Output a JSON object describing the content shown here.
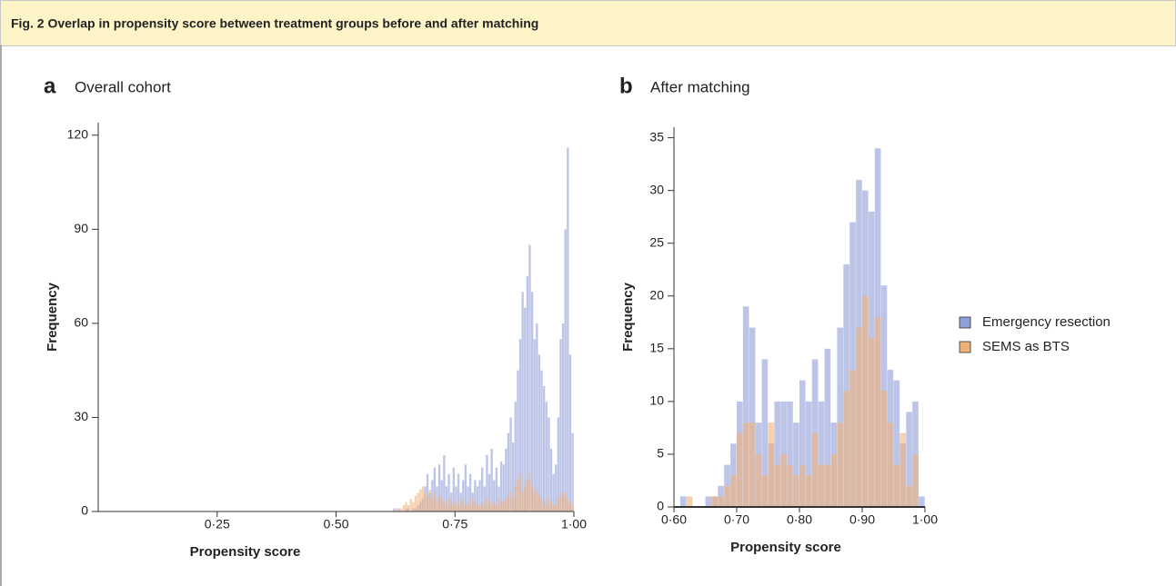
{
  "figure_title": "Fig. 2 Overlap in propensity score between treatment groups before and after matching",
  "chart_data": [
    {
      "type": "histogram",
      "panel_label": "a",
      "title": "Overall cohort",
      "xlabel": "Propensity score",
      "ylabel": "Frequency",
      "bins": [
        0.6,
        0.605,
        0.61,
        0.615,
        0.62,
        0.625,
        0.63,
        0.635,
        0.64,
        0.645,
        0.65,
        0.655,
        0.66,
        0.665,
        0.67,
        0.675,
        0.68,
        0.685,
        0.69,
        0.695,
        0.7,
        0.705,
        0.71,
        0.715,
        0.72,
        0.725,
        0.73,
        0.735,
        0.74,
        0.745,
        0.75,
        0.755,
        0.76,
        0.765,
        0.77,
        0.775,
        0.78,
        0.785,
        0.79,
        0.795,
        0.8,
        0.805,
        0.81,
        0.815,
        0.82,
        0.825,
        0.83,
        0.835,
        0.84,
        0.845,
        0.85,
        0.855,
        0.86,
        0.865,
        0.87,
        0.875,
        0.88,
        0.885,
        0.89,
        0.895,
        0.9,
        0.905,
        0.91,
        0.915,
        0.92,
        0.925,
        0.93,
        0.935,
        0.94,
        0.945,
        0.95,
        0.955,
        0.96,
        0.965,
        0.97,
        0.975,
        0.98,
        0.985,
        0.99,
        0.995,
        1.0
      ],
      "series": [
        {
          "color": "#8f9fd8",
          "values": [
            0,
            0,
            0,
            0,
            1,
            0,
            1,
            0,
            0,
            1,
            1,
            0,
            1,
            1,
            2,
            3,
            4,
            8,
            12,
            6,
            10,
            14,
            8,
            15,
            10,
            18,
            8,
            12,
            6,
            14,
            8,
            12,
            6,
            10,
            15,
            8,
            12,
            6,
            10,
            8,
            10,
            14,
            8,
            18,
            12,
            20,
            10,
            14,
            8,
            16,
            15,
            20,
            25,
            30,
            22,
            35,
            45,
            55,
            70,
            65,
            75,
            85,
            70,
            55,
            60,
            50,
            45,
            40,
            35,
            30,
            20,
            12,
            15,
            30,
            55,
            60,
            90,
            116,
            50,
            25
          ]
        },
        {
          "color": "#f0b07a",
          "values": [
            0,
            0,
            0,
            0,
            0,
            1,
            0,
            1,
            2,
            3,
            2,
            4,
            3,
            5,
            6,
            7,
            8,
            6,
            5,
            7,
            4,
            6,
            3,
            5,
            4,
            3,
            2,
            4,
            3,
            2,
            3,
            2,
            4,
            3,
            2,
            3,
            2,
            4,
            3,
            2,
            2,
            3,
            2,
            4,
            3,
            2,
            3,
            2,
            4,
            3,
            3,
            4,
            5,
            6,
            4,
            8,
            10,
            12,
            6,
            8,
            10,
            12,
            8,
            6,
            7,
            5,
            4,
            3,
            2,
            4,
            3,
            2,
            2,
            4,
            6,
            5,
            6,
            4,
            3,
            2
          ]
        }
      ],
      "xlim": [
        0,
        1
      ],
      "ylim": [
        0,
        124
      ],
      "xticks": [
        {
          "value": 0.25,
          "label": "0·25"
        },
        {
          "value": 0.5,
          "label": "0·50"
        },
        {
          "value": 0.75,
          "label": "0·75"
        },
        {
          "value": 1.0,
          "label": "1·00"
        }
      ],
      "yticks": [
        0,
        30,
        60,
        90,
        120
      ]
    },
    {
      "type": "histogram",
      "panel_label": "b",
      "title": "After matching",
      "xlabel": "Propensity score",
      "ylabel": "Frequency",
      "bins": [
        0.6,
        0.61,
        0.62,
        0.63,
        0.64,
        0.65,
        0.66,
        0.67,
        0.68,
        0.69,
        0.7,
        0.71,
        0.72,
        0.73,
        0.74,
        0.75,
        0.76,
        0.77,
        0.78,
        0.79,
        0.8,
        0.81,
        0.82,
        0.83,
        0.84,
        0.85,
        0.86,
        0.87,
        0.88,
        0.89,
        0.9,
        0.91,
        0.92,
        0.93,
        0.94,
        0.95,
        0.96,
        0.97,
        0.98,
        0.99,
        1.0
      ],
      "series": [
        {
          "name": "Emergency resection",
          "color": "#8f9fd8",
          "values": [
            0,
            1,
            0,
            0,
            0,
            1,
            1,
            2,
            4,
            6,
            10,
            19,
            17,
            8,
            14,
            6,
            10,
            10,
            10,
            8,
            12,
            10,
            14,
            10,
            15,
            8,
            17,
            23,
            27,
            31,
            30,
            28,
            34,
            21,
            13,
            12,
            6,
            9,
            10,
            1
          ]
        },
        {
          "name": "SEMS as BTS",
          "color": "#f0b07a",
          "values": [
            0,
            0,
            1,
            0,
            0,
            0,
            1,
            1,
            2,
            3,
            7,
            8,
            8,
            5,
            3,
            8,
            4,
            5,
            4,
            3,
            4,
            3,
            7,
            4,
            4,
            5,
            8,
            11,
            13,
            17,
            20,
            16,
            18,
            11,
            8,
            4,
            7,
            2,
            5,
            0
          ]
        }
      ],
      "xlim": [
        0.6,
        1.0
      ],
      "ylim": [
        0,
        36
      ],
      "xticks": [
        {
          "value": 0.6,
          "label": "0·60"
        },
        {
          "value": 0.7,
          "label": "0·70"
        },
        {
          "value": 0.8,
          "label": "0·80"
        },
        {
          "value": 0.9,
          "label": "0·90"
        },
        {
          "value": 1.0,
          "label": "1·00"
        }
      ],
      "yticks": [
        0,
        5,
        10,
        15,
        20,
        25,
        30,
        35
      ]
    }
  ]
}
